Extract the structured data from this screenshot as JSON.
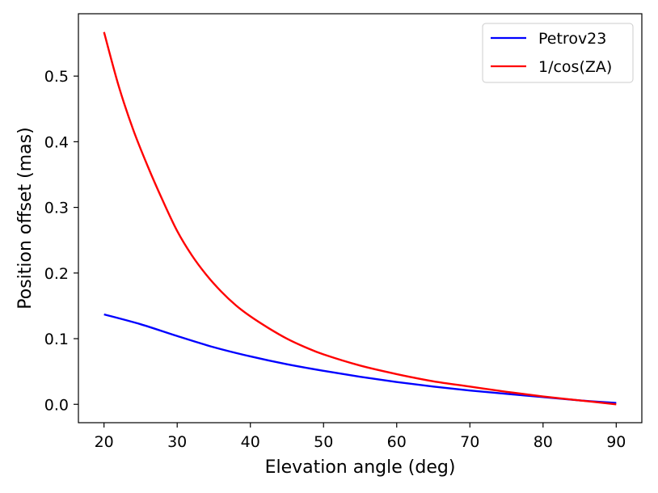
{
  "chart_data": {
    "type": "line",
    "title": "",
    "xlabel": "Elevation angle (deg)",
    "ylabel": "Position offset (mas)",
    "xlim": [
      16.5,
      93.5
    ],
    "ylim": [
      -0.028,
      0.595
    ],
    "xticks": [
      20,
      30,
      40,
      50,
      60,
      70,
      80,
      90
    ],
    "xtick_labels": [
      "20",
      "30",
      "40",
      "50",
      "60",
      "70",
      "80",
      "90"
    ],
    "yticks": [
      0.0,
      0.1,
      0.2,
      0.3,
      0.4,
      0.5
    ],
    "ytick_labels": [
      "0.0",
      "0.1",
      "0.2",
      "0.3",
      "0.4",
      "0.5"
    ],
    "grid": false,
    "legend_position": "top-right",
    "series": [
      {
        "name": "Petrov23",
        "color": "#0000ff",
        "x": [
          20,
          25,
          30,
          35,
          40,
          45,
          50,
          55,
          60,
          65,
          70,
          75,
          80,
          85,
          90
        ],
        "y": [
          0.137,
          0.122,
          0.104,
          0.087,
          0.073,
          0.061,
          0.051,
          0.042,
          0.034,
          0.027,
          0.021,
          0.016,
          0.011,
          0.006,
          0.002
        ]
      },
      {
        "name": "1/cos(ZA)",
        "color": "#ff0000",
        "x": [
          20,
          22,
          24,
          26,
          28,
          30,
          32,
          34,
          36,
          38,
          40,
          42.5,
          45,
          47.5,
          50,
          55,
          60,
          65,
          70,
          75,
          80,
          85,
          90
        ],
        "y": [
          0.567,
          0.485,
          0.418,
          0.362,
          0.311,
          0.264,
          0.227,
          0.197,
          0.172,
          0.151,
          0.134,
          0.116,
          0.1,
          0.087,
          0.076,
          0.059,
          0.046,
          0.035,
          0.027,
          0.019,
          0.012,
          0.006,
          0.0
        ]
      }
    ]
  }
}
